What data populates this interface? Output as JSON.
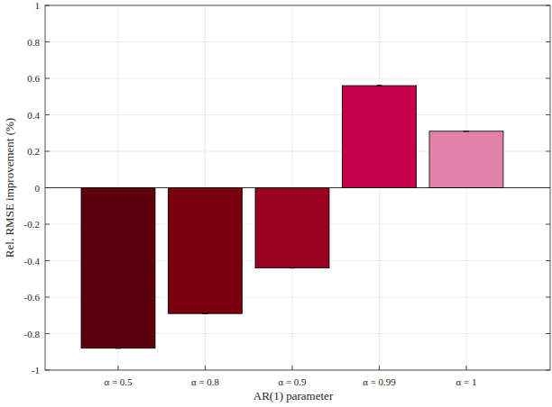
{
  "chart_data": {
    "type": "bar",
    "x_label": "AR(1) parameter",
    "y_label": "Rel. RMSE improvement (%)",
    "categories": [
      "α = 0.5",
      "α = 0.8",
      "α = 0.9",
      "α = 0.99",
      "α = 1"
    ],
    "values": [
      -0.88,
      -0.69,
      -0.44,
      0.56,
      0.31
    ],
    "errors": [
      0,
      0,
      0,
      0,
      0
    ],
    "colors": [
      "#5c000e",
      "#78000f",
      "#9a0020",
      "#c4004c",
      "#e183a8"
    ],
    "ylim": [
      -1,
      1
    ],
    "yticks": [
      -1,
      -0.8,
      -0.6,
      -0.4,
      -0.2,
      0,
      0.2,
      0.4,
      0.6,
      0.8,
      1
    ],
    "grid": true
  }
}
